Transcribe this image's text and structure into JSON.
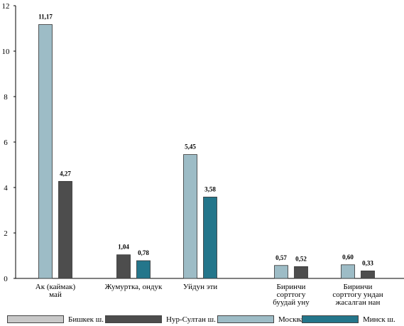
{
  "chart_data": {
    "type": "bar",
    "categories": [
      [
        "Ак (каймак)",
        "май"
      ],
      [
        "Жумуртка,  ондук"
      ],
      [
        "Уйдун эти"
      ],
      [
        "Биринчи",
        "сорттогу",
        "буудай уну"
      ],
      [
        "Биринчи",
        "сорттогу ундан",
        "жасалган нан"
      ]
    ],
    "series": [
      {
        "name": "Бишкек ш.",
        "color": "#c8c8c8",
        "values": [
          null,
          null,
          null,
          null,
          null
        ],
        "labels": [
          "",
          "",
          "",
          "",
          ""
        ]
      },
      {
        "name": "Нур-Султан ш.",
        "color": "#4d4d4d",
        "values": [
          4.27,
          1.04,
          null,
          0.52,
          0.33
        ],
        "labels": [
          "4,27",
          "1,04",
          "",
          "0,52",
          "0,33"
        ]
      },
      {
        "name": "Москва ш.",
        "color": "#9dbcc6",
        "values": [
          11.17,
          null,
          5.45,
          0.57,
          0.6
        ],
        "labels": [
          "11,17",
          "",
          "5,45",
          "0,57",
          "0,60"
        ]
      },
      {
        "name": "Минск ш.",
        "color": "#24768b",
        "values": [
          null,
          0.78,
          3.58,
          null,
          null
        ],
        "labels": [
          "",
          "0,78",
          "3,58",
          "",
          ""
        ]
      }
    ],
    "bar_order": [
      [
        2,
        1
      ],
      [
        1,
        3
      ],
      [
        2,
        3
      ],
      [
        2,
        1
      ],
      [
        2,
        1
      ]
    ],
    "yticks": [
      "0",
      "2",
      "4",
      "6",
      "8",
      "10",
      "12"
    ],
    "ylim": [
      0,
      12
    ],
    "title": "",
    "xlabel": "",
    "ylabel": "",
    "grid": false,
    "legend_position": "bottom"
  },
  "legend": [
    {
      "label": "Бишкек ш.",
      "color": "#c8c8c8"
    },
    {
      "label": "Нур-Султан ш.",
      "color": "#4d4d4d"
    },
    {
      "label": "Москва ш.",
      "color": "#9dbcc6"
    },
    {
      "label": "Минск ш.",
      "color": "#24768b"
    }
  ]
}
